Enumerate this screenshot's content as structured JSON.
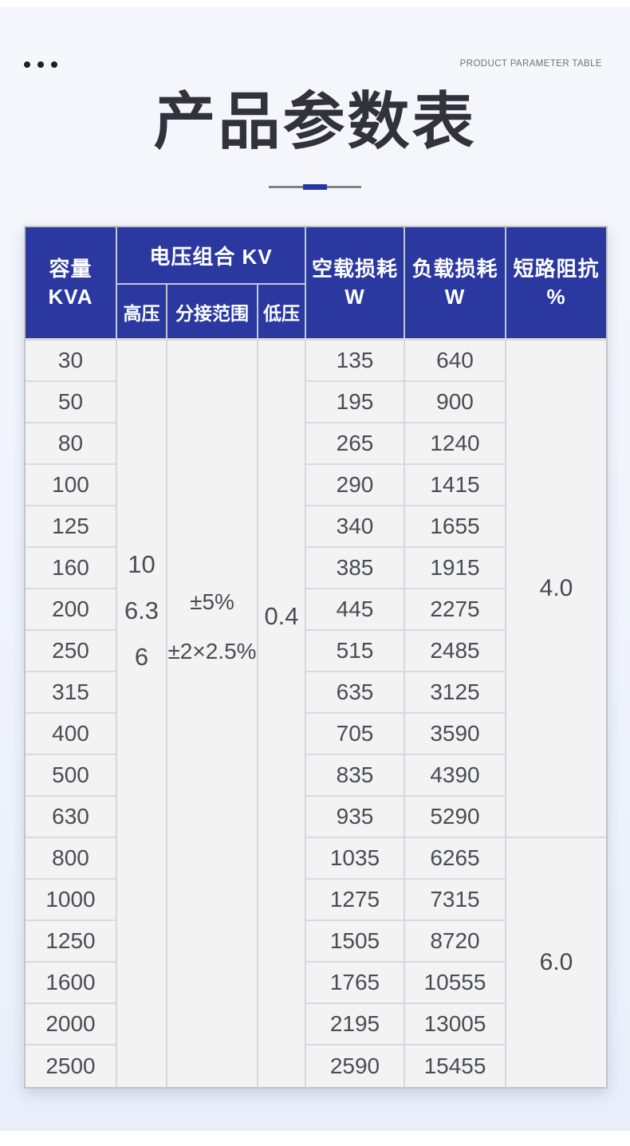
{
  "header": {
    "eyebrow": "PRODUCT PARAMETER TABLE",
    "title": "产品参数表"
  },
  "colors": {
    "header_bg": "#2a38a0",
    "accent_blue": "#2437a5",
    "panel_bg": "#f1f4fb",
    "body_cell_bg": "#f3f3f4",
    "body_text": "#4b4c4f"
  },
  "table": {
    "columns": {
      "capacity": {
        "line1": "容量",
        "line2": "KVA"
      },
      "voltage_group": "电压组合 KV",
      "voltage_sub": {
        "high": "高压",
        "tap": "分接范围",
        "low": "低压"
      },
      "no_load_loss": {
        "line1": "空载损耗",
        "line2": "W"
      },
      "load_loss": {
        "line1": "负载损耗",
        "line2": "W"
      },
      "impedance": {
        "line1": "短路阻抗",
        "line2": "%"
      }
    },
    "voltage": {
      "high_values": [
        "10",
        "6.3",
        "6"
      ],
      "tap_values": [
        "±5%",
        "±2×2.5%"
      ],
      "low_values": [
        "0.4"
      ]
    },
    "impedance_groups": [
      {
        "value": "4.0",
        "row_span": 12
      },
      {
        "value": "6.0",
        "row_span": 6
      }
    ],
    "rows": [
      {
        "kva": "30",
        "no_load_w": "135",
        "load_w": "640"
      },
      {
        "kva": "50",
        "no_load_w": "195",
        "load_w": "900"
      },
      {
        "kva": "80",
        "no_load_w": "265",
        "load_w": "1240"
      },
      {
        "kva": "100",
        "no_load_w": "290",
        "load_w": "1415"
      },
      {
        "kva": "125",
        "no_load_w": "340",
        "load_w": "1655"
      },
      {
        "kva": "160",
        "no_load_w": "385",
        "load_w": "1915"
      },
      {
        "kva": "200",
        "no_load_w": "445",
        "load_w": "2275"
      },
      {
        "kva": "250",
        "no_load_w": "515",
        "load_w": "2485"
      },
      {
        "kva": "315",
        "no_load_w": "635",
        "load_w": "3125"
      },
      {
        "kva": "400",
        "no_load_w": "705",
        "load_w": "3590"
      },
      {
        "kva": "500",
        "no_load_w": "835",
        "load_w": "4390"
      },
      {
        "kva": "630",
        "no_load_w": "935",
        "load_w": "5290"
      },
      {
        "kva": "800",
        "no_load_w": "1035",
        "load_w": "6265"
      },
      {
        "kva": "1000",
        "no_load_w": "1275",
        "load_w": "7315"
      },
      {
        "kva": "1250",
        "no_load_w": "1505",
        "load_w": "8720"
      },
      {
        "kva": "1600",
        "no_load_w": "1765",
        "load_w": "10555"
      },
      {
        "kva": "2000",
        "no_load_w": "2195",
        "load_w": "13005"
      },
      {
        "kva": "2500",
        "no_load_w": "2590",
        "load_w": "15455"
      }
    ]
  }
}
